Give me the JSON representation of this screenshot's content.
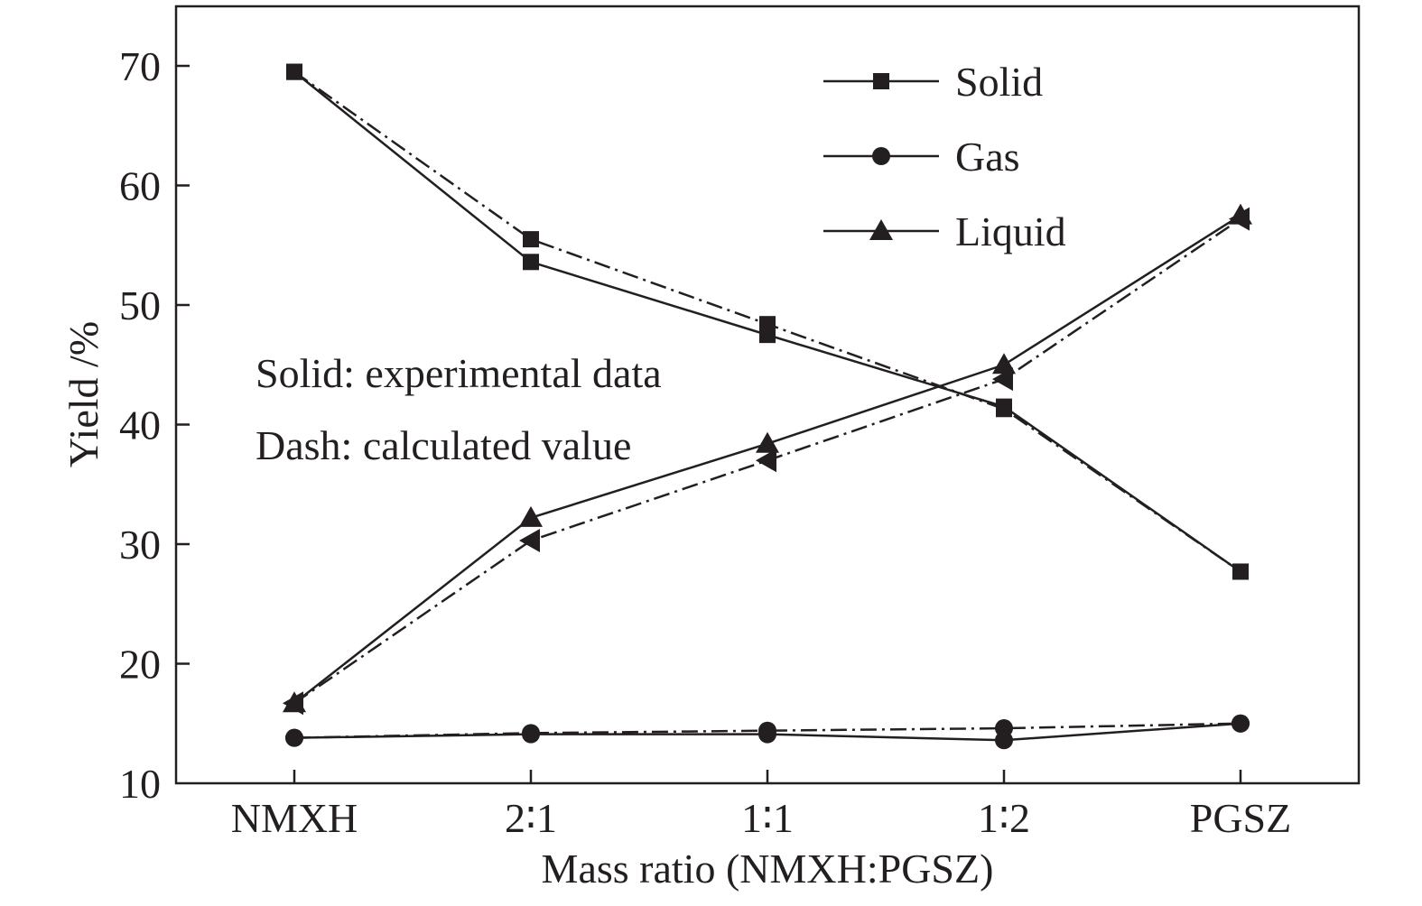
{
  "chart_data": {
    "type": "line",
    "title": "",
    "xlabel": "Mass ratio (NMXH:PGSZ)",
    "ylabel": "Yield /%",
    "categories": [
      "NMXH",
      "2∶1",
      "1∶1",
      "1∶2",
      "PGSZ"
    ],
    "ylim": [
      10,
      75
    ],
    "yticks": [
      10,
      20,
      30,
      40,
      50,
      60,
      70
    ],
    "grid": false,
    "legend_position": "top-right",
    "colors": {
      "ink": "#231f20",
      "background": "#ffffff"
    },
    "series": [
      {
        "name": "Solid",
        "kind": "experimental",
        "line": "solid",
        "marker": "square",
        "values": [
          69.5,
          53.6,
          47.5,
          41.5,
          27.7
        ]
      },
      {
        "name": "Gas",
        "kind": "experimental",
        "line": "solid",
        "marker": "circle",
        "values": [
          13.8,
          14.1,
          14.1,
          13.6,
          15.0
        ]
      },
      {
        "name": "Liquid",
        "kind": "experimental",
        "line": "solid",
        "marker": "triangle-up",
        "values": [
          16.7,
          32.2,
          38.4,
          45.0,
          57.5
        ]
      },
      {
        "name": "",
        "kind": "calculated",
        "line": "dash-dot",
        "marker": "square",
        "values": [
          69.5,
          55.5,
          48.4,
          41.3,
          27.7
        ]
      },
      {
        "name": "",
        "kind": "calculated",
        "line": "dash-dot",
        "marker": "circle",
        "values": [
          13.8,
          14.2,
          14.4,
          14.6,
          15.0
        ]
      },
      {
        "name": "",
        "kind": "calculated",
        "line": "dash-dot",
        "marker": "triangle-left",
        "values": [
          16.7,
          30.3,
          37.0,
          43.8,
          57.2
        ]
      }
    ],
    "annotations": [
      "Solid: experimental data",
      "Dash: calculated value"
    ]
  }
}
